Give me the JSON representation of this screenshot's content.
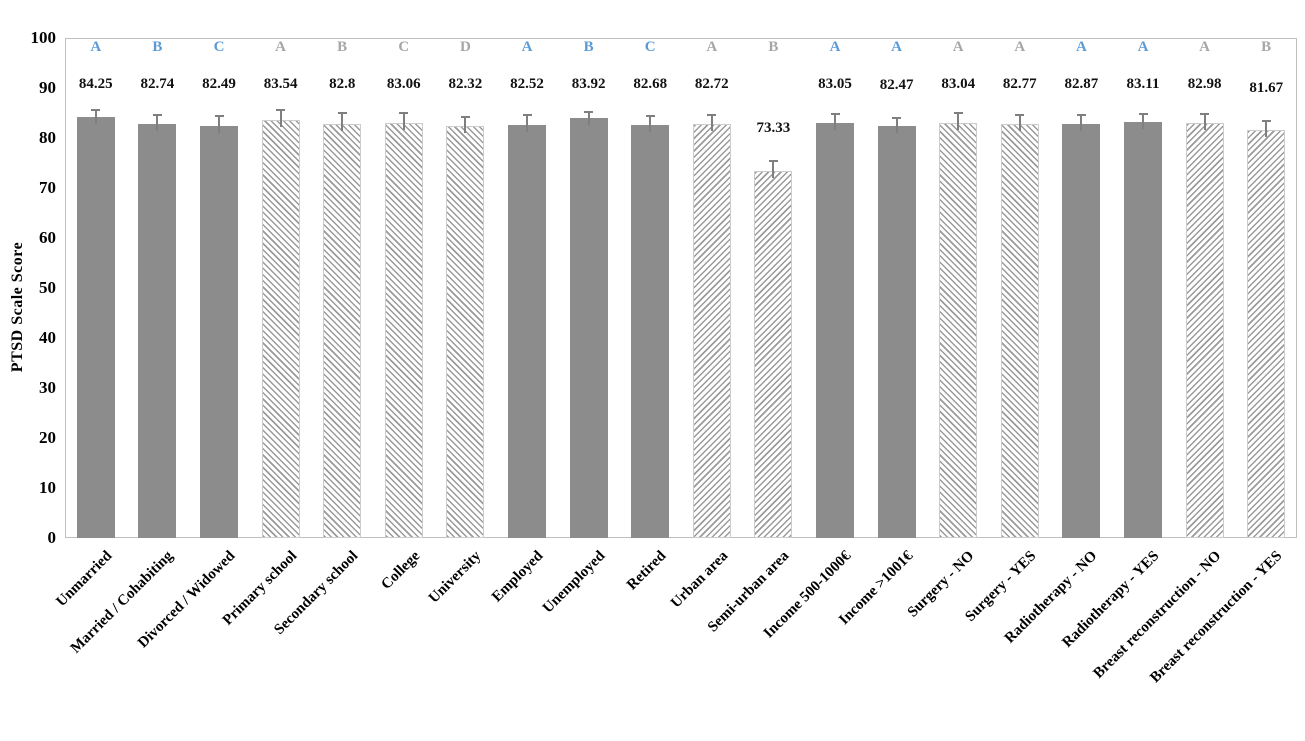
{
  "colors": {
    "solid_bar": "#8c8c8c",
    "hatch_line": "#9a9a9a",
    "letter_blue": "#5b9bd5",
    "letter_gray": "#a6a6a6",
    "error_bar": "#7f7f7f",
    "plot_border": "#bfbfbf",
    "value_text": "#111111"
  },
  "chart_data": {
    "type": "bar",
    "title": "",
    "xlabel": "",
    "ylabel": "PTSD Scale Score",
    "ylim": [
      0,
      100
    ],
    "y_ticks": [
      0,
      10,
      20,
      30,
      40,
      50,
      60,
      70,
      80,
      90,
      100
    ],
    "grid": false,
    "legend": false,
    "categories": [
      "Unmarried",
      "Married / Cohabiting",
      "Divorced / Widowed",
      "Primary school",
      "Secondary school",
      "College",
      "University",
      "Employed",
      "Unemployed",
      "Retired",
      "Urban area",
      "Semi-urban area",
      "Income 500-1000€",
      "Income >1001€",
      "Surgery - NO",
      "Surgery - YES",
      "Radiotherapy - NO",
      "Radiotherapy - YES",
      "Breast reconstruction - NO",
      "Breast reconstruction - YES"
    ],
    "values": [
      84.25,
      82.74,
      82.49,
      83.54,
      82.8,
      83.06,
      82.32,
      82.52,
      83.92,
      82.68,
      82.72,
      73.33,
      83.05,
      82.47,
      83.04,
      82.77,
      82.87,
      83.11,
      82.98,
      81.67
    ],
    "errors_est": [
      1.6,
      2.0,
      2.1,
      2.2,
      2.4,
      2.2,
      2.0,
      2.2,
      1.4,
      1.9,
      2.0,
      2.2,
      1.9,
      1.8,
      2.1,
      2.0,
      1.9,
      1.9,
      2.1,
      2.0
    ],
    "letters": [
      "A",
      "B",
      "C",
      "A",
      "B",
      "C",
      "D",
      "A",
      "B",
      "C",
      "A",
      "B",
      "A",
      "A",
      "A",
      "A",
      "A",
      "A",
      "A",
      "B"
    ],
    "letter_colors": [
      "blue",
      "blue",
      "blue",
      "gray",
      "gray",
      "gray",
      "gray",
      "blue",
      "blue",
      "blue",
      "gray",
      "gray",
      "blue",
      "blue",
      "gray",
      "gray",
      "blue",
      "blue",
      "gray",
      "gray"
    ],
    "fills": [
      "solid",
      "solid",
      "solid",
      "hatch_down",
      "hatch_down",
      "hatch_down",
      "hatch_down",
      "solid",
      "solid",
      "solid",
      "hatch_up",
      "hatch_up",
      "solid",
      "solid",
      "hatch_down",
      "hatch_down",
      "solid",
      "solid",
      "hatch_up",
      "hatch_up"
    ]
  }
}
